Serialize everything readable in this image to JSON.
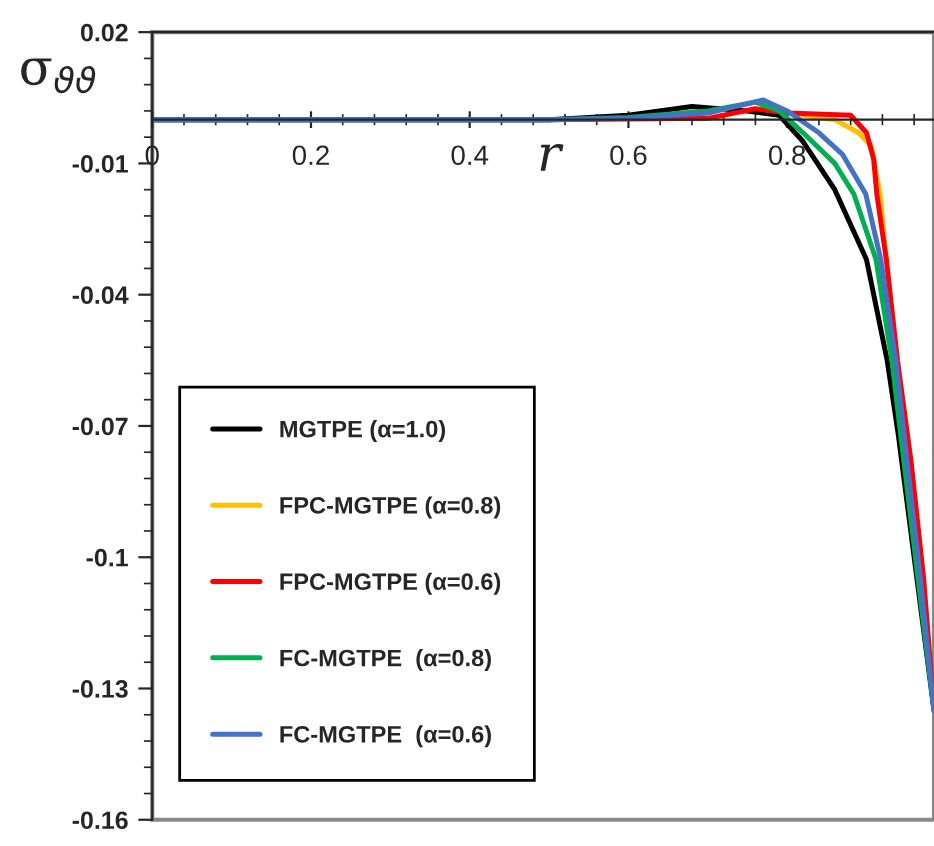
{
  "chart_data": {
    "type": "line",
    "xlabel": "r",
    "ylabel": "σ$_{ϑϑ}$",
    "xlim": [
      0,
      0.985
    ],
    "ylim": [
      -0.16,
      0.02
    ],
    "xticks": [
      0,
      0.2,
      0.4,
      0.6,
      0.8
    ],
    "yticks": [
      0.02,
      -0.01,
      -0.04,
      -0.07,
      -0.1,
      -0.13,
      -0.16
    ],
    "grid": false,
    "legend": "bottom left",
    "marker": "none",
    "line_style": "solid",
    "series": [
      {
        "name": "MGTPE (α=1.0)",
        "color": "#000000",
        "x": [
          0,
          0.5,
          0.6,
          0.68,
          0.75,
          0.79,
          0.82,
          0.86,
          0.9,
          0.926,
          0.94,
          0.96,
          0.985
        ],
        "values": [
          0,
          0,
          0.001,
          0.003,
          0.002,
          0.001,
          -0.005,
          -0.016,
          -0.032,
          -0.055,
          -0.072,
          -0.1,
          -0.135
        ]
      },
      {
        "name": "FPC-MGTPE (α=0.8)",
        "color": "#ffc000",
        "x": [
          0.82,
          0.86,
          0.89,
          0.906,
          0.917,
          0.925
        ],
        "values": [
          0.001,
          0,
          -0.003,
          -0.006,
          -0.017,
          -0.032
        ]
      },
      {
        "name": "FPC-MGTPE (α=0.6)",
        "color": "#ff0000",
        "x": [
          0,
          0.5,
          0.7,
          0.76,
          0.8,
          0.88,
          0.9,
          0.909,
          0.913,
          0.925,
          0.939,
          0.956,
          0.972,
          0.985
        ],
        "values": [
          0,
          0,
          0.0003,
          0.0025,
          0.0015,
          0.001,
          -0.003,
          -0.009,
          -0.017,
          -0.032,
          -0.055,
          -0.078,
          -0.105,
          -0.135
        ]
      },
      {
        "name": "FC-MGTPE  (α=0.8)",
        "color": "#00b050",
        "x": [
          0,
          0.5,
          0.6,
          0.7,
          0.76,
          0.79,
          0.82,
          0.86,
          0.884,
          0.912,
          0.932,
          0.947,
          0.965,
          0.985
        ],
        "values": [
          0,
          0,
          0.0005,
          0.002,
          0.004,
          0.002,
          -0.003,
          -0.01,
          -0.017,
          -0.032,
          -0.055,
          -0.078,
          -0.105,
          -0.135
        ]
      },
      {
        "name": "FC-MGTPE  (α=0.6)",
        "color": "#4472c4",
        "x": [
          0,
          0.5,
          0.6,
          0.7,
          0.77,
          0.8,
          0.84,
          0.87,
          0.899,
          0.918,
          0.937,
          0.951,
          0.968,
          0.985
        ],
        "values": [
          0,
          0,
          0.0003,
          0.0015,
          0.0045,
          0.002,
          -0.003,
          -0.008,
          -0.017,
          -0.032,
          -0.055,
          -0.078,
          -0.105,
          -0.135
        ]
      }
    ]
  }
}
